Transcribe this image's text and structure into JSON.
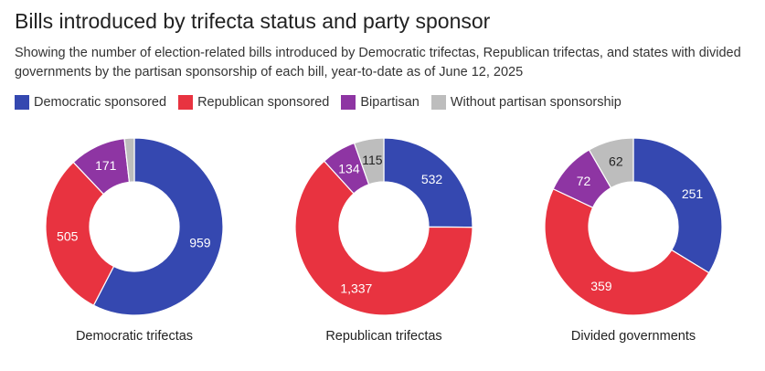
{
  "title": "Bills introduced by trifecta status and party sponsor",
  "subtitle": "Showing the number of election-related bills introduced by Democratic trifectas, Republican trifectas, and states with divided governments by the partisan sponsorship of each bill, year-to-date as of June 12, 2025",
  "legend": [
    {
      "label": "Democratic sponsored",
      "color": "#3548b0"
    },
    {
      "label": "Republican sponsored",
      "color": "#e83340"
    },
    {
      "label": "Bipartisan",
      "color": "#8e35a3"
    },
    {
      "label": "Without partisan sponsorship",
      "color": "#bdbdbd"
    }
  ],
  "chart_data": [
    {
      "type": "pie",
      "title": "Democratic trifectas",
      "categories": [
        "Democratic sponsored",
        "Republican sponsored",
        "Bipartisan",
        "Without partisan sponsorship"
      ],
      "values": [
        959,
        505,
        171,
        30
      ],
      "labels": [
        "959",
        "505",
        "171",
        ""
      ],
      "donut": true
    },
    {
      "type": "pie",
      "title": "Republican trifectas",
      "categories": [
        "Democratic sponsored",
        "Republican sponsored",
        "Bipartisan",
        "Without partisan sponsorship"
      ],
      "values": [
        532,
        1337,
        134,
        115
      ],
      "labels": [
        "532",
        "1,337",
        "134",
        "115"
      ],
      "donut": true
    },
    {
      "type": "pie",
      "title": "Divided governments",
      "categories": [
        "Democratic sponsored",
        "Republican sponsored",
        "Bipartisan",
        "Without partisan sponsorship"
      ],
      "values": [
        251,
        359,
        72,
        62
      ],
      "labels": [
        "251",
        "359",
        "72",
        "62"
      ],
      "donut": true
    }
  ]
}
